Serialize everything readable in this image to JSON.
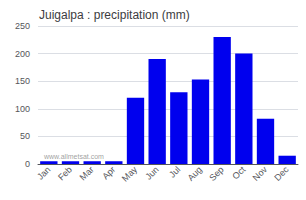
{
  "chart_data": {
    "type": "bar",
    "title": "Juigalpa : precipitation (mm)",
    "categories": [
      "Jan",
      "Feb",
      "Mar",
      "Apr",
      "May",
      "Jun",
      "Jul",
      "Aug",
      "Sep",
      "Oct",
      "Nov",
      "Dec"
    ],
    "values": [
      5,
      5,
      5,
      5,
      120,
      190,
      130,
      153,
      230,
      200,
      82,
      15
    ],
    "color": "#0000ee",
    "ylim": [
      0,
      250
    ],
    "yticks": [
      0,
      50,
      100,
      150,
      200,
      250
    ],
    "grid": true,
    "annotations": [
      "www.allmetsat.com"
    ]
  }
}
